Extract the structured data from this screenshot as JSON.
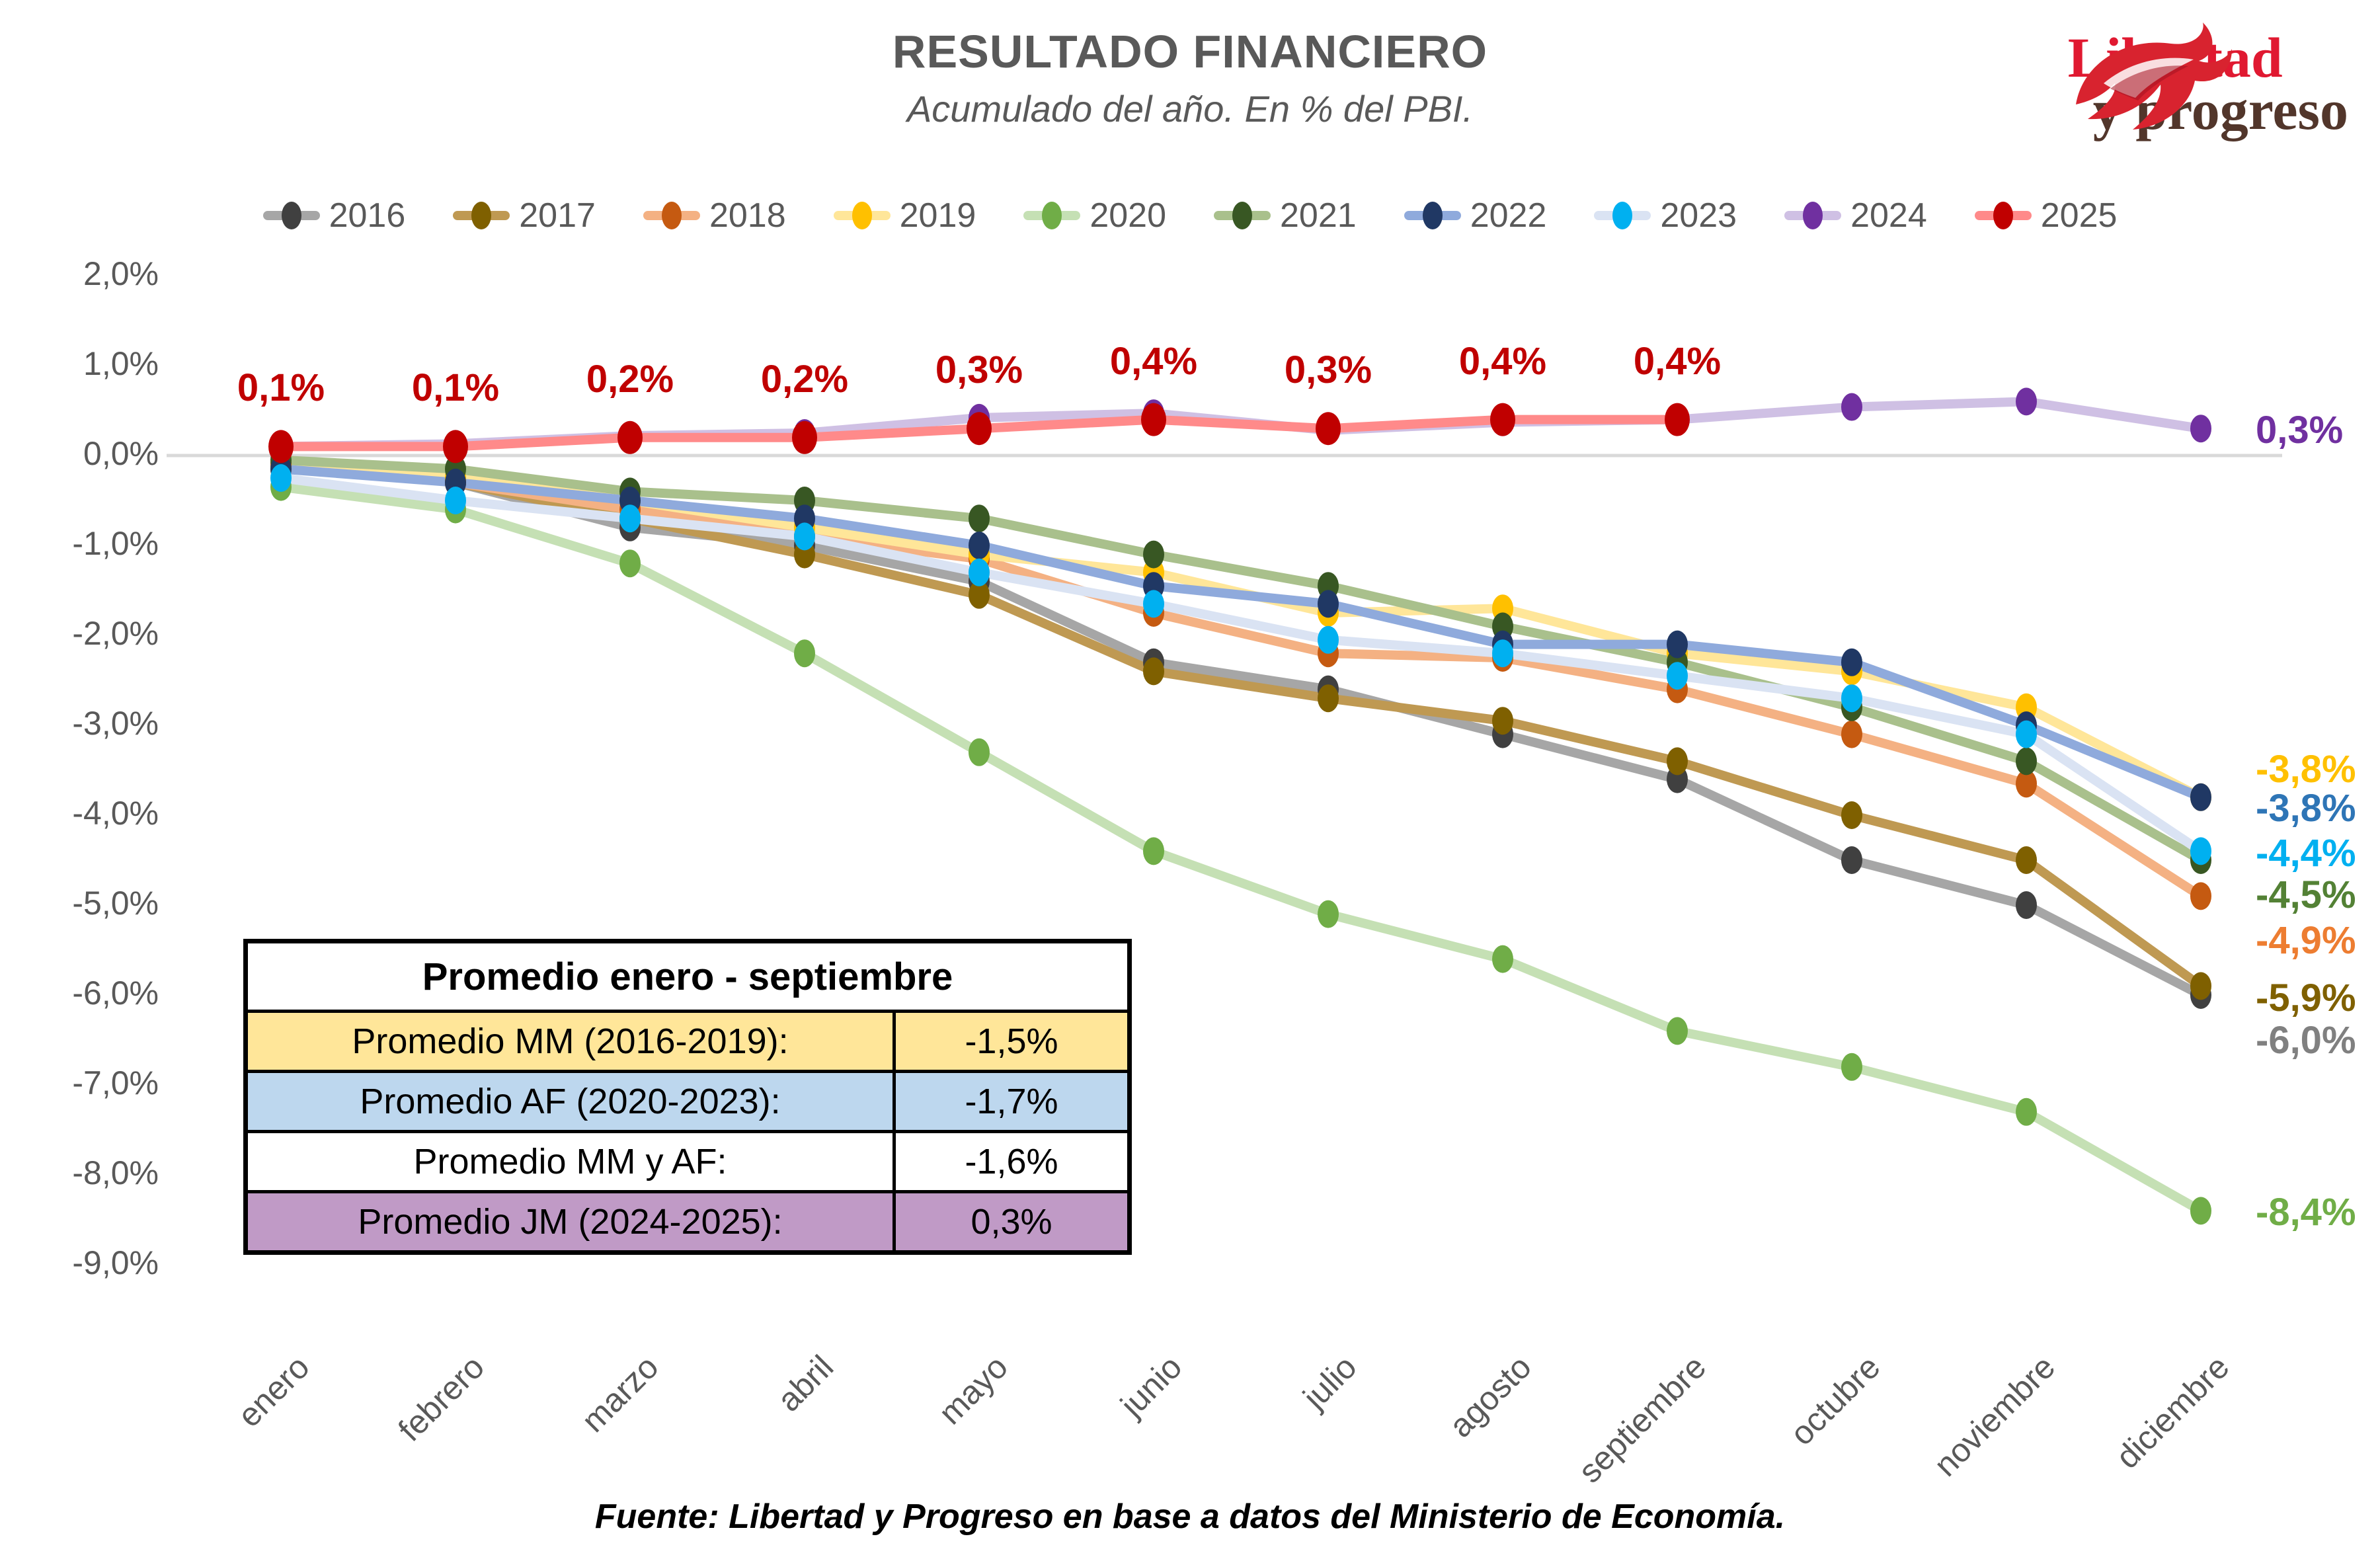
{
  "header": {
    "title": "RESULTADO FINANCIERO",
    "subtitle": "Acumulado del año. En % del PBI."
  },
  "logo": {
    "line1": "Libertad",
    "line2": "y progreso",
    "red": "#e01931",
    "brown": "#52362b"
  },
  "footer": {
    "source": "Fuente: Libertad y Progreso en base a datos del Ministerio de Economía."
  },
  "summary_table": {
    "title": "Promedio enero - septiembre",
    "rows": [
      {
        "label": "Promedio MM (2016-2019):",
        "value": "-1,5%",
        "bg": "#ffe699"
      },
      {
        "label": "Promedio AF (2020-2023):",
        "value": "-1,7%",
        "bg": "#bdd7ee"
      },
      {
        "label": "Promedio MM y AF:",
        "value": "-1,6%",
        "bg": "#ffffff"
      },
      {
        "label": "Promedio JM (2024-2025):",
        "value": "0,3%",
        "bg": "#c09ac6"
      }
    ]
  },
  "chart_data": {
    "type": "line",
    "title": "RESULTADO FINANCIERO",
    "subtitle": "Acumulado del año. En % del PBI.",
    "categories": [
      "enero",
      "febrero",
      "marzo",
      "abril",
      "mayo",
      "junio",
      "julio",
      "agosto",
      "septiembre",
      "octubre",
      "noviembre",
      "diciembre"
    ],
    "y_axis": {
      "tick_labels": [
        "2,0%",
        "1,0%",
        "0,0%",
        "-1,0%",
        "-2,0%",
        "-3,0%",
        "-4,0%",
        "-5,0%",
        "-6,0%",
        "-7,0%",
        "-8,0%",
        "-9,0%"
      ],
      "tick_values": [
        2,
        1,
        0,
        -1,
        -2,
        -3,
        -4,
        -5,
        -6,
        -7,
        -8,
        -9
      ],
      "min": -9,
      "max": 2,
      "gridline_at": 0
    },
    "series": [
      {
        "name": "2016",
        "line_color": "#a6a6a6",
        "marker_color": "#404040",
        "values": [
          -0.1,
          -0.3,
          -0.8,
          -1.0,
          -1.4,
          -2.3,
          -2.6,
          -3.1,
          -3.6,
          -4.5,
          -5.0,
          -6.0
        ]
      },
      {
        "name": "2017",
        "line_color": "#bf9952",
        "marker_color": "#7f6000",
        "values": [
          -0.1,
          -0.3,
          -0.7,
          -1.1,
          -1.55,
          -2.4,
          -2.7,
          -2.95,
          -3.4,
          -4.0,
          -4.5,
          -5.9
        ]
      },
      {
        "name": "2018",
        "line_color": "#f4b183",
        "marker_color": "#c55a11",
        "values": [
          -0.1,
          -0.3,
          -0.6,
          -0.9,
          -1.15,
          -1.75,
          -2.2,
          -2.25,
          -2.6,
          -3.1,
          -3.65,
          -4.9
        ]
      },
      {
        "name": "2019",
        "line_color": "#ffe699",
        "marker_color": "#ffc000",
        "values": [
          -0.15,
          -0.25,
          -0.5,
          -0.8,
          -1.1,
          -1.3,
          -1.75,
          -1.7,
          -2.2,
          -2.4,
          -2.8,
          -3.8
        ]
      },
      {
        "name": "2020",
        "line_color": "#c5e0b4",
        "marker_color": "#70ad47",
        "values": [
          -0.35,
          -0.6,
          -1.2,
          -2.2,
          -3.3,
          -4.4,
          -5.1,
          -5.6,
          -6.4,
          -6.8,
          -7.3,
          -8.4
        ]
      },
      {
        "name": "2021",
        "line_color": "#a9c08c",
        "marker_color": "#385723",
        "values": [
          -0.05,
          -0.15,
          -0.4,
          -0.5,
          -0.7,
          -1.1,
          -1.45,
          -1.9,
          -2.3,
          -2.8,
          -3.4,
          -4.5
        ]
      },
      {
        "name": "2022",
        "line_color": "#8faadc",
        "marker_color": "#203864",
        "values": [
          -0.15,
          -0.3,
          -0.5,
          -0.7,
          -1.0,
          -1.45,
          -1.65,
          -2.1,
          -2.1,
          -2.3,
          -3.0,
          -3.8
        ]
      },
      {
        "name": "2023",
        "line_color": "#dae3f3",
        "marker_color": "#00b0f0",
        "values": [
          -0.25,
          -0.5,
          -0.7,
          -0.9,
          -1.3,
          -1.65,
          -2.05,
          -2.2,
          -2.45,
          -2.7,
          -3.1,
          -4.4
        ]
      },
      {
        "name": "2024",
        "line_color": "#cfc0e4",
        "marker_color": "#7030a0",
        "values": [
          0.1,
          0.13,
          0.22,
          0.25,
          0.42,
          0.47,
          0.28,
          0.37,
          0.4,
          0.54,
          0.6,
          0.3
        ]
      },
      {
        "name": "2025",
        "line_color": "#ff8a8a",
        "marker_color": "#c00000",
        "values": [
          0.1,
          0.1,
          0.2,
          0.2,
          0.3,
          0.4,
          0.3,
          0.4,
          0.4
        ],
        "point_labels": [
          "0,1%",
          "0,1%",
          "0,2%",
          "0,2%",
          "0,3%",
          "0,4%",
          "0,3%",
          "0,4%",
          "0,4%"
        ],
        "point_label_color": "#c00000"
      }
    ],
    "end_labels": [
      {
        "series": "2024",
        "text": "0,3%",
        "color": "#7030a0",
        "pos": 0.28
      },
      {
        "series": "2019",
        "text": "-3,8%",
        "color": "#ffc000",
        "pos": -3.49
      },
      {
        "series": "2022",
        "text": "-3,8%",
        "color": "#2e75b6",
        "pos": -3.93
      },
      {
        "series": "2023",
        "text": "-4,4%",
        "color": "#00b0f0",
        "pos": -4.43
      },
      {
        "series": "2021",
        "text": "-4,5%",
        "color": "#538135",
        "pos": -4.89
      },
      {
        "series": "2018",
        "text": "-4,9%",
        "color": "#ed7d31",
        "pos": -5.4
      },
      {
        "series": "2017",
        "text": "-5,9%",
        "color": "#7f6000",
        "pos": -6.04
      },
      {
        "series": "2016",
        "text": "-6,0%",
        "color": "#808080",
        "pos": -6.51
      },
      {
        "series": "2020",
        "text": "-8,4%",
        "color": "#70ad47",
        "pos": -8.42
      }
    ],
    "legend_position": "top",
    "grid": "only zero line",
    "gridline_color": "#d9d9d9"
  }
}
